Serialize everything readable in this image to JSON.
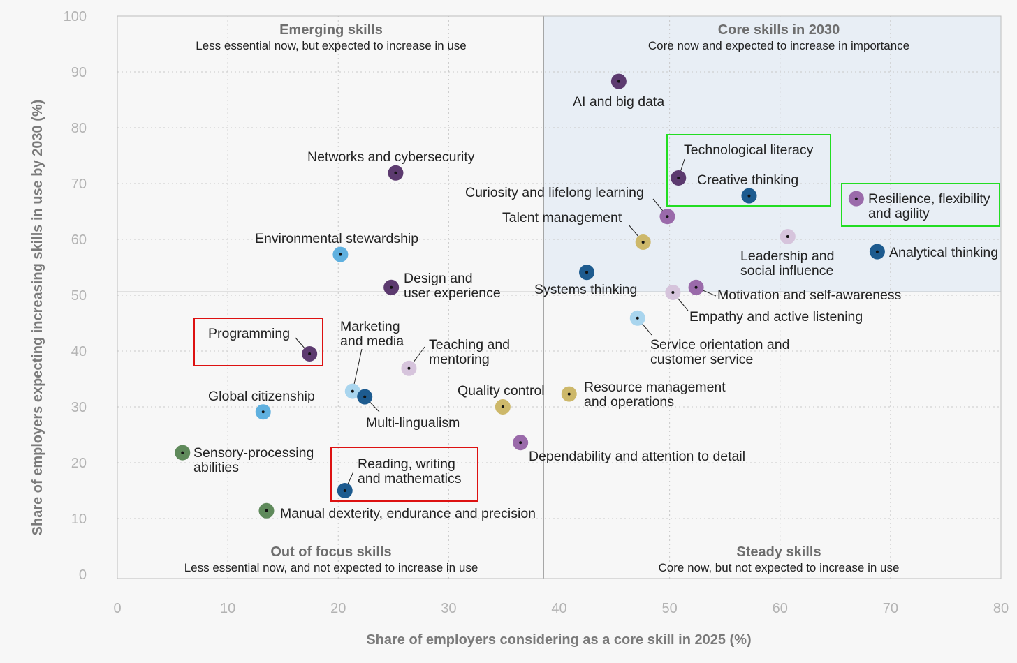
{
  "chart_data": {
    "type": "scatter",
    "xlabel": "Share of employers considering as a core skill in 2025 (%)",
    "ylabel": "Share of employers expecting increasing skills in use by 2030 (%)",
    "xlim": [
      0,
      80
    ],
    "ylim": [
      0,
      100
    ],
    "xticks": [
      "0",
      "10",
      "20",
      "30",
      "40",
      "50",
      "60",
      "70",
      "80"
    ],
    "yticks": [
      "0",
      "10",
      "20",
      "30",
      "40",
      "50",
      "60",
      "70",
      "80",
      "90",
      "100"
    ],
    "grid": true,
    "dividers": {
      "x": 38.6,
      "y": 50.6
    },
    "quadrants": [
      {
        "title": "Emerging skills",
        "subtitle": "Less essential now, but expected to increase in use"
      },
      {
        "title": "Core skills in 2030",
        "subtitle": "Core now and expected to increase in importance"
      },
      {
        "title": "Out of focus skills",
        "subtitle": "Less essential now, and not expected to increase in use"
      },
      {
        "title": "Steady skills",
        "subtitle": "Core now, but not expected to increase in use"
      }
    ],
    "colors": {
      "dark_purple": "#5c3a6f",
      "medium_purple": "#9a6aaa",
      "light_purple": "#d6c4dc",
      "dark_blue": "#1d5b8f",
      "light_blue": "#5fb0df",
      "pale_blue": "#a9d5ee",
      "gold": "#cdb86a",
      "green": "#5f8a5b",
      "highlight_green": "#22dd22",
      "highlight_red": "#dd1111",
      "shade": "#e8eef5"
    },
    "points": [
      {
        "label": [
          "AI and big data"
        ],
        "x": 45.4,
        "y": 88.3,
        "color": "dark_purple"
      },
      {
        "label": [
          "Networks and cybersecurity"
        ],
        "x": 25.2,
        "y": 71.9,
        "color": "dark_purple"
      },
      {
        "label": [
          "Technological literacy"
        ],
        "x": 50.8,
        "y": 71.0,
        "color": "dark_purple"
      },
      {
        "label": [
          "Creative thinking"
        ],
        "x": 57.2,
        "y": 67.8,
        "color": "dark_blue"
      },
      {
        "label": [
          "Resilience, flexibility",
          "and agility"
        ],
        "x": 66.9,
        "y": 67.3,
        "color": "medium_purple"
      },
      {
        "label": [
          "Curiosity and lifelong learning"
        ],
        "x": 49.8,
        "y": 64.1,
        "color": "medium_purple"
      },
      {
        "label": [
          "Talent management"
        ],
        "x": 47.6,
        "y": 59.5,
        "color": "gold"
      },
      {
        "label": [
          "Leadership and",
          "social influence"
        ],
        "x": 60.7,
        "y": 60.5,
        "color": "light_purple"
      },
      {
        "label": [
          "Analytical thinking"
        ],
        "x": 68.8,
        "y": 57.8,
        "color": "dark_blue"
      },
      {
        "label": [
          "Environmental stewardship"
        ],
        "x": 20.2,
        "y": 57.3,
        "color": "light_blue"
      },
      {
        "label": [
          "Systems thinking"
        ],
        "x": 42.5,
        "y": 54.1,
        "color": "dark_blue"
      },
      {
        "label": [
          "Design and",
          "user experience"
        ],
        "x": 24.8,
        "y": 51.4,
        "color": "dark_purple"
      },
      {
        "label": [
          "Motivation and self-awareness"
        ],
        "x": 52.4,
        "y": 51.4,
        "color": "medium_purple"
      },
      {
        "label": [
          "Empathy and active listening"
        ],
        "x": 50.3,
        "y": 50.5,
        "color": "light_purple"
      },
      {
        "label": [
          "Service orientation and",
          "customer service"
        ],
        "x": 47.1,
        "y": 45.9,
        "color": "pale_blue"
      },
      {
        "label": [
          "Programming"
        ],
        "x": 17.4,
        "y": 39.5,
        "color": "dark_purple"
      },
      {
        "label": [
          "Teaching and",
          "mentoring"
        ],
        "x": 26.4,
        "y": 36.9,
        "color": "light_purple"
      },
      {
        "label": [
          "Marketing",
          "and media"
        ],
        "x": 21.3,
        "y": 32.8,
        "color": "pale_blue"
      },
      {
        "label": [
          "Multi-lingualism"
        ],
        "x": 22.4,
        "y": 31.8,
        "color": "dark_blue"
      },
      {
        "label": [
          "Resource management",
          "and operations"
        ],
        "x": 40.9,
        "y": 32.3,
        "color": "gold"
      },
      {
        "label": [
          "Quality control"
        ],
        "x": 34.9,
        "y": 30.0,
        "color": "gold"
      },
      {
        "label": [
          "Global citizenship"
        ],
        "x": 13.2,
        "y": 29.1,
        "color": "light_blue"
      },
      {
        "label": [
          "Dependability and attention to detail"
        ],
        "x": 36.5,
        "y": 23.6,
        "color": "medium_purple"
      },
      {
        "label": [
          "Sensory-processing",
          "abilities"
        ],
        "x": 5.9,
        "y": 21.8,
        "color": "green"
      },
      {
        "label": [
          "Reading, writing",
          "and mathematics"
        ],
        "x": 20.6,
        "y": 15.0,
        "color": "dark_blue"
      },
      {
        "label": [
          "Manual dexterity, endurance and precision"
        ],
        "x": 13.5,
        "y": 11.4,
        "color": "green"
      }
    ]
  }
}
